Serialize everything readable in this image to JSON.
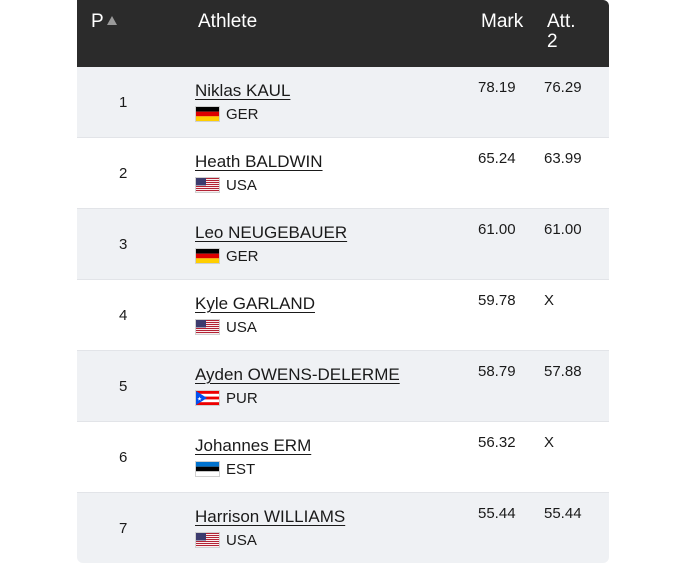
{
  "header": {
    "position": "P",
    "athlete": "Athlete",
    "mark": "Mark",
    "attempt": "Att.\n2"
  },
  "rows": [
    {
      "position": "1",
      "name": "Niklas KAUL",
      "country": "GER",
      "flag": "germany-flag-icon",
      "mark": "78.19",
      "attempt": "76.29"
    },
    {
      "position": "2",
      "name": "Heath BALDWIN",
      "country": "USA",
      "flag": "usa-flag-icon",
      "mark": "65.24",
      "attempt": "63.99"
    },
    {
      "position": "3",
      "name": "Leo NEUGEBAUER",
      "country": "GER",
      "flag": "germany-flag-icon",
      "mark": "61.00",
      "attempt": "61.00"
    },
    {
      "position": "4",
      "name": "Kyle GARLAND",
      "country": "USA",
      "flag": "usa-flag-icon",
      "mark": "59.78",
      "attempt": "X"
    },
    {
      "position": "5",
      "name": "Ayden OWENS-DELERME",
      "country": "PUR",
      "flag": "puerto-rico-flag-icon",
      "mark": "58.79",
      "attempt": "57.88"
    },
    {
      "position": "6",
      "name": "Johannes ERM",
      "country": "EST",
      "flag": "estonia-flag-icon",
      "mark": "56.32",
      "attempt": "X"
    },
    {
      "position": "7",
      "name": "Harrison WILLIAMS",
      "country": "USA",
      "flag": "usa-flag-icon",
      "mark": "55.44",
      "attempt": "55.44"
    }
  ],
  "colors": {
    "header_bg": "#2b2b2b",
    "row_alt_bg": "#eff1f4",
    "text": "#1a1a1a"
  }
}
